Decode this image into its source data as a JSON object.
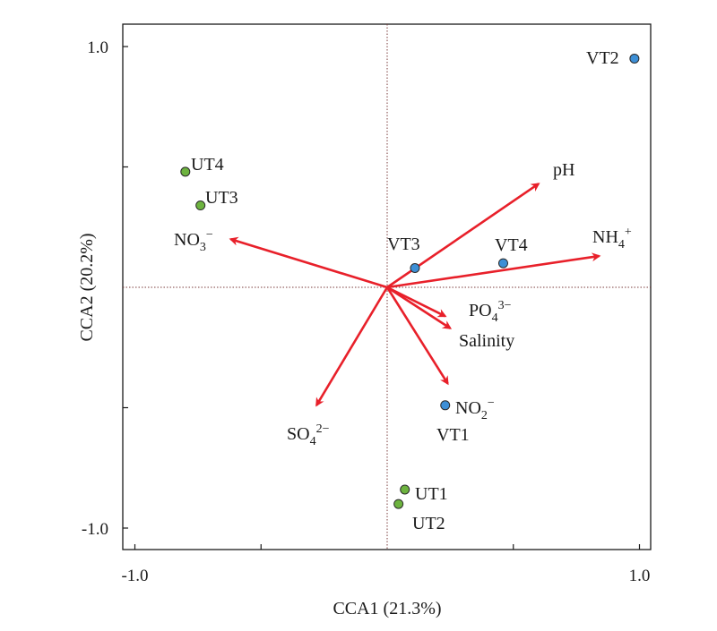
{
  "chart_data": {
    "type": "scatter",
    "xlabel": "CCA1 (21.3%)",
    "ylabel": "CCA2 (20.2%)",
    "xlim": [
      -1.0,
      1.0
    ],
    "ylim": [
      -1.0,
      1.0
    ],
    "x_tick_labels": [
      "-1.0",
      "1.0"
    ],
    "y_tick_labels": [
      "1.0",
      "-1.0"
    ],
    "reference_lines": "dotted lines at x = 0 and y = 0",
    "grid": false,
    "colors": {
      "arrow": "#e8202a",
      "U_group": "#6db33f",
      "V_group": "#3d8fd6"
    },
    "points": [
      {
        "label": "VT2",
        "x": 0.98,
        "y": 0.95,
        "group": "V"
      },
      {
        "label": "UT4",
        "x": -0.8,
        "y": 0.48,
        "group": "U"
      },
      {
        "label": "UT3",
        "x": -0.74,
        "y": 0.34,
        "group": "U"
      },
      {
        "label": "VT3",
        "x": 0.11,
        "y": 0.08,
        "group": "V"
      },
      {
        "label": "VT4",
        "x": 0.46,
        "y": 0.1,
        "group": "V"
      },
      {
        "label": "VT1",
        "x": 0.23,
        "y": -0.49,
        "group": "V"
      },
      {
        "label": "UT1",
        "x": 0.07,
        "y": -0.84,
        "group": "U"
      },
      {
        "label": "UT2",
        "x": 0.045,
        "y": -0.9,
        "group": "U"
      }
    ],
    "environmental_vectors": [
      {
        "label": "pH",
        "x": 0.6,
        "y": 0.43
      },
      {
        "label": "NH4+",
        "x": 0.84,
        "y": 0.13
      },
      {
        "label": "NO3-",
        "x": -0.62,
        "y": 0.2
      },
      {
        "label": "PO43-",
        "x": 0.23,
        "y": -0.12
      },
      {
        "label": "Salinity",
        "x": 0.25,
        "y": -0.17
      },
      {
        "label": "NO2-",
        "x": 0.24,
        "y": -0.4
      },
      {
        "label": "SO42-",
        "x": -0.28,
        "y": -0.49
      }
    ]
  }
}
